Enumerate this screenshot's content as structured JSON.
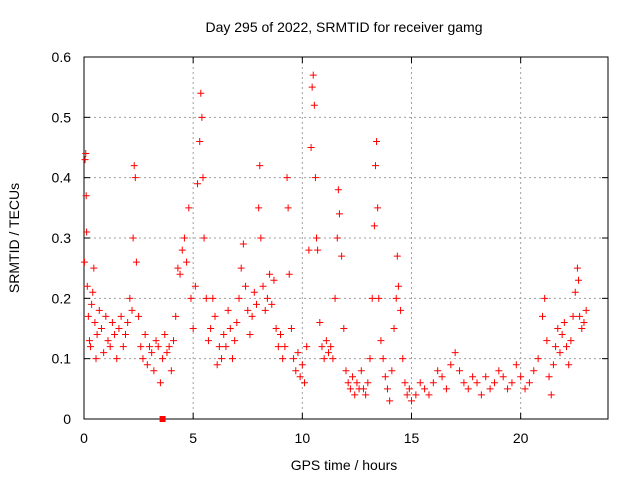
{
  "chart_data": {
    "type": "scatter",
    "title": "Day 295 of 2022, SRMTID for receiver gamg",
    "xlabel": "GPS time / hours",
    "ylabel": "SRMTID / TECUs",
    "xlim": [
      0,
      24
    ],
    "ylim": [
      0,
      0.6
    ],
    "xticks": [
      0,
      5,
      10,
      15,
      20
    ],
    "yticks": [
      0,
      0.1,
      0.2,
      0.3,
      0.4,
      0.5,
      0.6
    ],
    "xtick_labels": [
      "0",
      "5",
      "10",
      "15",
      "20"
    ],
    "ytick_labels": [
      "0",
      "0.1",
      "0.2",
      "0.3",
      "0.4",
      "0.5",
      "0.6"
    ],
    "grid": true,
    "marker": "plus",
    "color": "#ff0000",
    "series": [
      {
        "name": "SRMTID",
        "points": [
          [
            0.02,
            0.26
          ],
          [
            0.05,
            0.43
          ],
          [
            0.08,
            0.44
          ],
          [
            0.1,
            0.37
          ],
          [
            0.12,
            0.31
          ],
          [
            0.15,
            0.22
          ],
          [
            0.2,
            0.17
          ],
          [
            0.25,
            0.13
          ],
          [
            0.3,
            0.12
          ],
          [
            0.35,
            0.19
          ],
          [
            0.4,
            0.21
          ],
          [
            0.45,
            0.25
          ],
          [
            0.5,
            0.16
          ],
          [
            0.55,
            0.1
          ],
          [
            0.6,
            0.14
          ],
          [
            0.7,
            0.18
          ],
          [
            0.8,
            0.15
          ],
          [
            0.9,
            0.11
          ],
          [
            1.0,
            0.17
          ],
          [
            1.1,
            0.13
          ],
          [
            1.2,
            0.12
          ],
          [
            1.3,
            0.16
          ],
          [
            1.4,
            0.14
          ],
          [
            1.5,
            0.1
          ],
          [
            1.6,
            0.15
          ],
          [
            1.7,
            0.17
          ],
          [
            1.8,
            0.12
          ],
          [
            1.9,
            0.14
          ],
          [
            2.0,
            0.16
          ],
          [
            2.1,
            0.2
          ],
          [
            2.2,
            0.18
          ],
          [
            2.25,
            0.3
          ],
          [
            2.3,
            0.42
          ],
          [
            2.35,
            0.4
          ],
          [
            2.4,
            0.26
          ],
          [
            2.5,
            0.17
          ],
          [
            2.6,
            0.12
          ],
          [
            2.7,
            0.1
          ],
          [
            2.8,
            0.14
          ],
          [
            2.9,
            0.09
          ],
          [
            3.0,
            0.12
          ],
          [
            3.1,
            0.11
          ],
          [
            3.2,
            0.08
          ],
          [
            3.3,
            0.13
          ],
          [
            3.4,
            0.12
          ],
          [
            3.5,
            0.06
          ],
          [
            3.6,
            0.1
          ],
          [
            3.7,
            0.14
          ],
          [
            3.8,
            0.11
          ],
          [
            3.9,
            0.12
          ],
          [
            4.0,
            0.08
          ],
          [
            4.1,
            0.13
          ],
          [
            4.2,
            0.17
          ],
          [
            4.3,
            0.25
          ],
          [
            4.4,
            0.24
          ],
          [
            4.5,
            0.28
          ],
          [
            4.6,
            0.3
          ],
          [
            4.7,
            0.26
          ],
          [
            4.8,
            0.35
          ],
          [
            4.9,
            0.2
          ],
          [
            5.0,
            0.15
          ],
          [
            5.1,
            0.22
          ],
          [
            5.2,
            0.39
          ],
          [
            5.3,
            0.46
          ],
          [
            5.35,
            0.54
          ],
          [
            5.4,
            0.5
          ],
          [
            5.45,
            0.4
          ],
          [
            5.5,
            0.3
          ],
          [
            5.6,
            0.2
          ],
          [
            5.7,
            0.13
          ],
          [
            5.8,
            0.15
          ],
          [
            5.9,
            0.2
          ],
          [
            6.0,
            0.17
          ],
          [
            6.1,
            0.09
          ],
          [
            6.2,
            0.12
          ],
          [
            6.3,
            0.1
          ],
          [
            6.4,
            0.14
          ],
          [
            6.5,
            0.12
          ],
          [
            6.6,
            0.18
          ],
          [
            6.7,
            0.15
          ],
          [
            6.8,
            0.1
          ],
          [
            6.9,
            0.13
          ],
          [
            7.0,
            0.16
          ],
          [
            7.1,
            0.2
          ],
          [
            7.2,
            0.25
          ],
          [
            7.3,
            0.29
          ],
          [
            7.4,
            0.22
          ],
          [
            7.5,
            0.18
          ],
          [
            7.6,
            0.14
          ],
          [
            7.7,
            0.17
          ],
          [
            7.8,
            0.21
          ],
          [
            7.9,
            0.19
          ],
          [
            8.0,
            0.35
          ],
          [
            8.05,
            0.42
          ],
          [
            8.1,
            0.3
          ],
          [
            8.2,
            0.22
          ],
          [
            8.3,
            0.18
          ],
          [
            8.4,
            0.2
          ],
          [
            8.5,
            0.24
          ],
          [
            8.6,
            0.19
          ],
          [
            8.7,
            0.23
          ],
          [
            8.8,
            0.15
          ],
          [
            8.9,
            0.12
          ],
          [
            9.0,
            0.14
          ],
          [
            9.1,
            0.1
          ],
          [
            9.2,
            0.12
          ],
          [
            9.3,
            0.4
          ],
          [
            9.35,
            0.35
          ],
          [
            9.4,
            0.24
          ],
          [
            9.5,
            0.15
          ],
          [
            9.6,
            0.1
          ],
          [
            9.7,
            0.08
          ],
          [
            9.8,
            0.11
          ],
          [
            9.9,
            0.07
          ],
          [
            10.0,
            0.09
          ],
          [
            10.1,
            0.06
          ],
          [
            10.2,
            0.12
          ],
          [
            10.3,
            0.28
          ],
          [
            10.4,
            0.45
          ],
          [
            10.45,
            0.55
          ],
          [
            10.5,
            0.57
          ],
          [
            10.55,
            0.52
          ],
          [
            10.6,
            0.4
          ],
          [
            10.65,
            0.3
          ],
          [
            10.7,
            0.28
          ],
          [
            10.8,
            0.16
          ],
          [
            10.9,
            0.12
          ],
          [
            11.0,
            0.1
          ],
          [
            11.1,
            0.13
          ],
          [
            11.2,
            0.11
          ],
          [
            11.3,
            0.12
          ],
          [
            11.4,
            0.1
          ],
          [
            11.5,
            0.2
          ],
          [
            11.6,
            0.3
          ],
          [
            11.65,
            0.38
          ],
          [
            11.7,
            0.34
          ],
          [
            11.8,
            0.27
          ],
          [
            11.9,
            0.15
          ],
          [
            12.0,
            0.08
          ],
          [
            12.1,
            0.06
          ],
          [
            12.2,
            0.05
          ],
          [
            12.3,
            0.07
          ],
          [
            12.4,
            0.04
          ],
          [
            12.5,
            0.06
          ],
          [
            12.6,
            0.05
          ],
          [
            12.7,
            0.08
          ],
          [
            12.8,
            0.05
          ],
          [
            12.9,
            0.04
          ],
          [
            13.0,
            0.06
          ],
          [
            13.1,
            0.1
          ],
          [
            13.2,
            0.2
          ],
          [
            13.3,
            0.32
          ],
          [
            13.35,
            0.42
          ],
          [
            13.4,
            0.46
          ],
          [
            13.45,
            0.35
          ],
          [
            13.5,
            0.2
          ],
          [
            13.6,
            0.13
          ],
          [
            13.7,
            0.1
          ],
          [
            13.8,
            0.07
          ],
          [
            13.9,
            0.05
          ],
          [
            14.0,
            0.03
          ],
          [
            14.1,
            0.08
          ],
          [
            14.2,
            0.15
          ],
          [
            14.3,
            0.2
          ],
          [
            14.35,
            0.27
          ],
          [
            14.4,
            0.22
          ],
          [
            14.5,
            0.18
          ],
          [
            14.6,
            0.1
          ],
          [
            14.7,
            0.06
          ],
          [
            14.8,
            0.04
          ],
          [
            14.9,
            0.05
          ],
          [
            15.0,
            0.03
          ],
          [
            15.2,
            0.04
          ],
          [
            15.4,
            0.06
          ],
          [
            15.6,
            0.05
          ],
          [
            15.8,
            0.04
          ],
          [
            16.0,
            0.06
          ],
          [
            16.2,
            0.08
          ],
          [
            16.4,
            0.07
          ],
          [
            16.6,
            0.05
          ],
          [
            16.8,
            0.09
          ],
          [
            17.0,
            0.11
          ],
          [
            17.2,
            0.08
          ],
          [
            17.4,
            0.06
          ],
          [
            17.6,
            0.05
          ],
          [
            17.8,
            0.07
          ],
          [
            18.0,
            0.06
          ],
          [
            18.2,
            0.04
          ],
          [
            18.4,
            0.07
          ],
          [
            18.6,
            0.05
          ],
          [
            18.8,
            0.06
          ],
          [
            19.0,
            0.08
          ],
          [
            19.2,
            0.07
          ],
          [
            19.4,
            0.05
          ],
          [
            19.6,
            0.06
          ],
          [
            19.8,
            0.09
          ],
          [
            20.0,
            0.07
          ],
          [
            20.2,
            0.05
          ],
          [
            20.4,
            0.06
          ],
          [
            20.6,
            0.08
          ],
          [
            20.8,
            0.1
          ],
          [
            21.0,
            0.17
          ],
          [
            21.1,
            0.2
          ],
          [
            21.2,
            0.13
          ],
          [
            21.3,
            0.07
          ],
          [
            21.4,
            0.04
          ],
          [
            21.5,
            0.09
          ],
          [
            21.6,
            0.12
          ],
          [
            21.7,
            0.15
          ],
          [
            21.8,
            0.11
          ],
          [
            21.9,
            0.14
          ],
          [
            22.0,
            0.16
          ],
          [
            22.1,
            0.12
          ],
          [
            22.2,
            0.09
          ],
          [
            22.3,
            0.13
          ],
          [
            22.4,
            0.17
          ],
          [
            22.5,
            0.21
          ],
          [
            22.6,
            0.25
          ],
          [
            22.65,
            0.23
          ],
          [
            22.7,
            0.17
          ],
          [
            22.8,
            0.15
          ],
          [
            22.9,
            0.16
          ],
          [
            23.0,
            0.18
          ]
        ]
      }
    ],
    "annotations": [
      {
        "type": "square-marker",
        "x": 3.6,
        "y": 0.0
      }
    ]
  }
}
